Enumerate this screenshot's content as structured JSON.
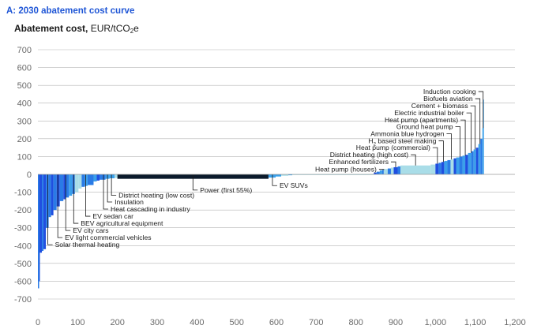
{
  "panel_title": "A: 2030 abatement cost curve",
  "y_title": {
    "bold": "Abatement cost,",
    "unit_pre": "EUR/tCO",
    "unit_sub": "2",
    "unit_post": "e"
  },
  "colors": {
    "dark_blue": "#1f4fe0",
    "blue": "#2a7be6",
    "mid_blue": "#3aa0ea",
    "light_blue": "#a9dde8",
    "navy": "#0b1a2b",
    "axis": "#b5b5b5",
    "leader": "#1a1a1a"
  },
  "chart_data": {
    "type": "bar",
    "variant": "variable-width abatement cost curve",
    "title": "A: 2030 abatement cost curve",
    "ylabel": "Abatement cost, EUR/tCO2e",
    "xlabel": "",
    "xlim": [
      0,
      1200
    ],
    "ylim": [
      -700,
      700
    ],
    "xticks": [
      0,
      100,
      200,
      300,
      400,
      500,
      600,
      700,
      800,
      900,
      1000,
      1100,
      1200
    ],
    "xtick_labels": [
      "0",
      "100",
      "200",
      "300",
      "400",
      "500",
      "600",
      "700",
      "800",
      "900",
      "1,000",
      "1,100",
      "1,200"
    ],
    "yticks": [
      700,
      600,
      500,
      400,
      300,
      200,
      100,
      0,
      -100,
      -200,
      -300,
      -400,
      -500,
      -600,
      -700
    ],
    "grid": "horizontal",
    "segments": [
      {
        "x0": 0,
        "x1": 3,
        "y": -640,
        "c": "blue"
      },
      {
        "x0": 3,
        "x1": 5,
        "y": -600,
        "c": "dark_blue"
      },
      {
        "x0": 5,
        "x1": 10,
        "y": -440,
        "c": "dark_blue"
      },
      {
        "x0": 10,
        "x1": 14,
        "y": -430,
        "c": "blue"
      },
      {
        "x0": 14,
        "x1": 20,
        "y": -420,
        "c": "dark_blue"
      },
      {
        "x0": 20,
        "x1": 27,
        "y": -300,
        "c": "blue"
      },
      {
        "x0": 27,
        "x1": 33,
        "y": -240,
        "c": "blue"
      },
      {
        "x0": 33,
        "x1": 39,
        "y": -230,
        "c": "dark_blue"
      },
      {
        "x0": 39,
        "x1": 47,
        "y": -200,
        "c": "blue"
      },
      {
        "x0": 47,
        "x1": 55,
        "y": -180,
        "c": "dark_blue"
      },
      {
        "x0": 55,
        "x1": 64,
        "y": -150,
        "c": "blue"
      },
      {
        "x0": 64,
        "x1": 70,
        "y": -140,
        "c": "dark_blue"
      },
      {
        "x0": 70,
        "x1": 78,
        "y": -130,
        "c": "blue"
      },
      {
        "x0": 78,
        "x1": 86,
        "y": -120,
        "c": "mid_blue"
      },
      {
        "x0": 86,
        "x1": 93,
        "y": -110,
        "c": "blue"
      },
      {
        "x0": 93,
        "x1": 102,
        "y": -100,
        "c": "light_blue"
      },
      {
        "x0": 102,
        "x1": 110,
        "y": -80,
        "c": "light_blue"
      },
      {
        "x0": 110,
        "x1": 118,
        "y": -70,
        "c": "blue"
      },
      {
        "x0": 118,
        "x1": 125,
        "y": -65,
        "c": "mid_blue"
      },
      {
        "x0": 125,
        "x1": 140,
        "y": -60,
        "c": "blue"
      },
      {
        "x0": 140,
        "x1": 148,
        "y": -40,
        "c": "mid_blue"
      },
      {
        "x0": 148,
        "x1": 155,
        "y": -35,
        "c": "dark_blue"
      },
      {
        "x0": 155,
        "x1": 170,
        "y": -30,
        "c": "blue"
      },
      {
        "x0": 170,
        "x1": 180,
        "y": -25,
        "c": "mid_blue"
      },
      {
        "x0": 180,
        "x1": 193,
        "y": -22,
        "c": "mid_blue"
      },
      {
        "x0": 193,
        "x1": 200,
        "y": -20,
        "c": "light_blue"
      },
      {
        "x0": 200,
        "x1": 580,
        "y": -25,
        "c": "navy"
      },
      {
        "x0": 580,
        "x1": 598,
        "y": -18,
        "c": "mid_blue"
      },
      {
        "x0": 598,
        "x1": 612,
        "y": -12,
        "c": "mid_blue"
      },
      {
        "x0": 612,
        "x1": 630,
        "y": -8,
        "c": "light_blue"
      },
      {
        "x0": 630,
        "x1": 640,
        "y": -5,
        "c": "mid_blue"
      },
      {
        "x0": 640,
        "x1": 845,
        "y": -2,
        "c": "light_blue"
      },
      {
        "x0": 845,
        "x1": 852,
        "y": 10,
        "c": "dark_blue"
      },
      {
        "x0": 852,
        "x1": 860,
        "y": 15,
        "c": "blue"
      },
      {
        "x0": 860,
        "x1": 866,
        "y": 22,
        "c": "mid_blue"
      },
      {
        "x0": 866,
        "x1": 870,
        "y": 25,
        "c": "blue"
      },
      {
        "x0": 870,
        "x1": 880,
        "y": 30,
        "c": "light_blue"
      },
      {
        "x0": 880,
        "x1": 888,
        "y": 33,
        "c": "blue"
      },
      {
        "x0": 888,
        "x1": 895,
        "y": 38,
        "c": "light_blue"
      },
      {
        "x0": 895,
        "x1": 905,
        "y": 40,
        "c": "dark_blue"
      },
      {
        "x0": 905,
        "x1": 912,
        "y": 45,
        "c": "blue"
      },
      {
        "x0": 912,
        "x1": 988,
        "y": 50,
        "c": "light_blue"
      },
      {
        "x0": 988,
        "x1": 1000,
        "y": 55,
        "c": "light_blue"
      },
      {
        "x0": 1000,
        "x1": 1008,
        "y": 60,
        "c": "dark_blue"
      },
      {
        "x0": 1008,
        "x1": 1015,
        "y": 65,
        "c": "blue"
      },
      {
        "x0": 1015,
        "x1": 1022,
        "y": 70,
        "c": "dark_blue"
      },
      {
        "x0": 1022,
        "x1": 1030,
        "y": 75,
        "c": "mid_blue"
      },
      {
        "x0": 1030,
        "x1": 1038,
        "y": 80,
        "c": "blue"
      },
      {
        "x0": 1038,
        "x1": 1046,
        "y": 85,
        "c": "light_blue"
      },
      {
        "x0": 1046,
        "x1": 1052,
        "y": 90,
        "c": "dark_blue"
      },
      {
        "x0": 1052,
        "x1": 1060,
        "y": 95,
        "c": "mid_blue"
      },
      {
        "x0": 1060,
        "x1": 1068,
        "y": 100,
        "c": "blue"
      },
      {
        "x0": 1068,
        "x1": 1075,
        "y": 105,
        "c": "mid_blue"
      },
      {
        "x0": 1075,
        "x1": 1082,
        "y": 110,
        "c": "dark_blue"
      },
      {
        "x0": 1082,
        "x1": 1090,
        "y": 120,
        "c": "mid_blue"
      },
      {
        "x0": 1090,
        "x1": 1096,
        "y": 130,
        "c": "blue"
      },
      {
        "x0": 1096,
        "x1": 1102,
        "y": 140,
        "c": "mid_blue"
      },
      {
        "x0": 1102,
        "x1": 1108,
        "y": 150,
        "c": "dark_blue"
      },
      {
        "x0": 1108,
        "x1": 1113,
        "y": 170,
        "c": "mid_blue"
      },
      {
        "x0": 1113,
        "x1": 1118,
        "y": 200,
        "c": "blue"
      },
      {
        "x0": 1118,
        "x1": 1120,
        "y": 260,
        "c": "mid_blue"
      },
      {
        "x0": 1120,
        "x1": 1122,
        "y": 420,
        "c": "mid_blue"
      }
    ],
    "annotations": [
      {
        "text": "Induction cooking",
        "x": 1120,
        "label_y": 465,
        "side": "above"
      },
      {
        "text": "Biofuels aviation",
        "x": 1112,
        "label_y": 425,
        "side": "above"
      },
      {
        "text": "Cement + biomass",
        "x": 1100,
        "label_y": 385,
        "side": "above"
      },
      {
        "text": "Electric industrial boiler",
        "x": 1090,
        "label_y": 345,
        "side": "above"
      },
      {
        "text": "Heat pump (apartments)",
        "x": 1075,
        "label_y": 305,
        "side": "above"
      },
      {
        "text": "Ground heat pump",
        "x": 1062,
        "label_y": 268,
        "side": "above"
      },
      {
        "text": "Ammonia blue hydrogen",
        "x": 1040,
        "label_y": 228,
        "side": "above"
      },
      {
        "text": "H2 based steel making",
        "x": 1020,
        "label_y": 188,
        "side": "above",
        "sub_index": 1
      },
      {
        "text": "Heat pump (commercial)",
        "x": 1005,
        "label_y": 150,
        "side": "above"
      },
      {
        "text": "District heating (high cost)",
        "x": 950,
        "label_y": 110,
        "side": "above"
      },
      {
        "text": "Enhanced fertilizers",
        "x": 900,
        "label_y": 70,
        "side": "above"
      },
      {
        "text": "Heat pump (houses)",
        "x": 870,
        "label_y": 28,
        "side": "above"
      },
      {
        "text": "EV SUVs",
        "x": 590,
        "label_y": -63,
        "side": "right"
      },
      {
        "text": "Power (first 55%)",
        "x": 390,
        "label_y": -88,
        "side": "below"
      },
      {
        "text": "District heating (low cost)",
        "x": 185,
        "label_y": -118,
        "side": "below"
      },
      {
        "text": "Insulation",
        "x": 175,
        "label_y": -155,
        "side": "below"
      },
      {
        "text": "Heat cascading in industry",
        "x": 165,
        "label_y": -195,
        "side": "below"
      },
      {
        "text": "EV sedan car",
        "x": 120,
        "label_y": -235,
        "side": "below"
      },
      {
        "text": "BEV agricultural equipment",
        "x": 90,
        "label_y": -275,
        "side": "below"
      },
      {
        "text": "EV city cars",
        "x": 70,
        "label_y": -315,
        "side": "below"
      },
      {
        "text": "EV light commercial vehicles",
        "x": 50,
        "label_y": -355,
        "side": "below"
      },
      {
        "text": "Solar thermal heating",
        "x": 25,
        "label_y": -395,
        "side": "below"
      }
    ]
  }
}
